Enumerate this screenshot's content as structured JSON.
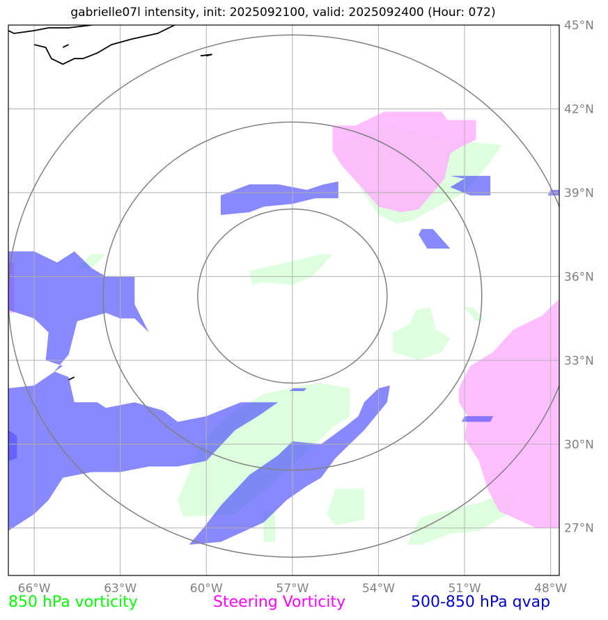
{
  "title": "gabrielle07l intensity, init: 2025092100, valid: 2025092400 (Hour: 072)",
  "map": {
    "lon_range": [
      -66.9,
      -47.7
    ],
    "lat_range": [
      25.3,
      45.0
    ],
    "storm_center": {
      "lon": -57.0,
      "lat": 35.3
    },
    "range_rings_deg": [
      3.3,
      6.6,
      9.9
    ],
    "lon_ticks": [
      {
        "lon": -66,
        "label": "66°W"
      },
      {
        "lon": -63,
        "label": "63°W"
      },
      {
        "lon": -60,
        "label": "60°W"
      },
      {
        "lon": -57,
        "label": "57°W"
      },
      {
        "lon": -54,
        "label": "54°W"
      },
      {
        "lon": -51,
        "label": "51°W"
      },
      {
        "lon": -48,
        "label": "48°W"
      }
    ],
    "lat_ticks": [
      {
        "lat": 45,
        "label": "45°N"
      },
      {
        "lat": 42,
        "label": "42°N"
      },
      {
        "lat": 39,
        "label": "39°N"
      },
      {
        "lat": 36,
        "label": "36°N"
      },
      {
        "lat": 33,
        "label": "33°N"
      },
      {
        "lat": 30,
        "label": "30°N"
      },
      {
        "lat": 27,
        "label": "27°N"
      }
    ],
    "grid": true
  },
  "layers": [
    {
      "key": "vort850",
      "label": "850 hPa vorticity",
      "color": "#00ff00",
      "fill": "#ccffcc",
      "opacity": 0.65,
      "polygons": [
        [
          [
            -55.4,
            40.9
          ],
          [
            -53.6,
            41.4
          ],
          [
            -51.5,
            40.9
          ],
          [
            -49.7,
            40.7
          ],
          [
            -50.1,
            40.1
          ],
          [
            -51.0,
            39.0
          ],
          [
            -52.3,
            38.3
          ],
          [
            -52.8,
            38.0
          ],
          [
            -53.4,
            37.9
          ],
          [
            -54.0,
            38.2
          ],
          [
            -54.6,
            39.1
          ],
          [
            -55.1,
            40.1
          ],
          [
            -55.4,
            40.5
          ]
        ],
        [
          [
            -58.5,
            36.2
          ],
          [
            -57.2,
            36.5
          ],
          [
            -56.0,
            36.8
          ],
          [
            -55.6,
            36.8
          ],
          [
            -56.3,
            36.0
          ],
          [
            -57.0,
            35.7
          ],
          [
            -58.0,
            35.8
          ],
          [
            -58.4,
            35.7
          ]
        ],
        [
          [
            -64.0,
            36.8
          ],
          [
            -63.5,
            36.8
          ],
          [
            -64.0,
            36.3
          ],
          [
            -64.5,
            36.3
          ]
        ],
        [
          [
            -52.7,
            34.8
          ],
          [
            -52.2,
            34.9
          ],
          [
            -52.0,
            34.1
          ],
          [
            -51.5,
            33.8
          ],
          [
            -51.8,
            33.3
          ],
          [
            -52.6,
            33.0
          ],
          [
            -53.5,
            33.3
          ],
          [
            -53.5,
            34.0
          ],
          [
            -52.9,
            34.3
          ]
        ],
        [
          [
            -51.0,
            34.9
          ],
          [
            -50.7,
            34.9
          ],
          [
            -50.3,
            34.4
          ],
          [
            -50.6,
            34.4
          ]
        ],
        [
          [
            -58.0,
            31.8
          ],
          [
            -56.1,
            32.2
          ],
          [
            -55.0,
            32.0
          ],
          [
            -55.0,
            31.0
          ],
          [
            -55.6,
            30.6
          ],
          [
            -56.5,
            29.7
          ],
          [
            -58.0,
            28.3
          ],
          [
            -59.0,
            27.5
          ],
          [
            -60.8,
            27.4
          ],
          [
            -61.0,
            28.0
          ],
          [
            -60.6,
            29.0
          ],
          [
            -60.2,
            30.0
          ],
          [
            -59.5,
            30.8
          ],
          [
            -59.0,
            31.2
          ]
        ],
        [
          [
            -58.0,
            27.6
          ],
          [
            -57.6,
            27.6
          ],
          [
            -57.6,
            26.5
          ],
          [
            -58.0,
            26.5
          ]
        ],
        [
          [
            -55.5,
            28.4
          ],
          [
            -54.5,
            28.4
          ],
          [
            -54.5,
            27.3
          ],
          [
            -55.5,
            27.1
          ],
          [
            -55.8,
            27.5
          ]
        ],
        [
          [
            -52.5,
            27.4
          ],
          [
            -50.5,
            27.9
          ],
          [
            -49.0,
            28.5
          ],
          [
            -49.5,
            27.5
          ],
          [
            -50.5,
            26.9
          ],
          [
            -51.5,
            26.8
          ],
          [
            -52.5,
            26.4
          ],
          [
            -53.0,
            26.4
          ],
          [
            -52.8,
            26.9
          ]
        ]
      ]
    },
    {
      "key": "steer",
      "label": "Steering Vorticity",
      "color": "#ff00ff",
      "fill": "#ffb3ff",
      "opacity": 0.85,
      "polygons": [
        [
          [
            -55.6,
            41.4
          ],
          [
            -54.8,
            41.4
          ],
          [
            -53.8,
            41.9
          ],
          [
            -51.8,
            41.9
          ],
          [
            -51.6,
            41.6
          ],
          [
            -50.6,
            41.6
          ],
          [
            -50.6,
            40.9
          ],
          [
            -51.2,
            40.6
          ],
          [
            -51.5,
            40.4
          ],
          [
            -51.7,
            39.5
          ],
          [
            -52.6,
            38.4
          ],
          [
            -53.2,
            38.3
          ],
          [
            -54.0,
            38.5
          ],
          [
            -54.6,
            39.2
          ],
          [
            -55.3,
            40.0
          ],
          [
            -55.6,
            40.5
          ]
        ],
        [
          [
            -47.7,
            35.2
          ],
          [
            -48.3,
            34.6
          ],
          [
            -49.3,
            34.1
          ],
          [
            -50.0,
            33.3
          ],
          [
            -50.8,
            32.8
          ],
          [
            -51.2,
            32.0
          ],
          [
            -51.2,
            31.5
          ],
          [
            -50.9,
            31.0
          ],
          [
            -51.0,
            30.2
          ],
          [
            -50.5,
            29.4
          ],
          [
            -50.2,
            28.4
          ],
          [
            -49.8,
            27.6
          ],
          [
            -48.5,
            27.0
          ],
          [
            -47.7,
            27.0
          ]
        ],
        [
          [
            -66.9,
            36.5
          ],
          [
            -66.7,
            36.5
          ],
          [
            -66.7,
            34.7
          ],
          [
            -66.9,
            34.7
          ]
        ]
      ]
    },
    {
      "key": "qvap",
      "label": "500-850 hPa qvap",
      "color": "#0000cc",
      "fill": "#5555ff",
      "opacity": 0.7,
      "polygons": [
        [
          [
            -59.5,
            38.9
          ],
          [
            -58.5,
            39.3
          ],
          [
            -57.5,
            39.3
          ],
          [
            -56.5,
            39.1
          ],
          [
            -55.9,
            39.3
          ],
          [
            -55.4,
            39.4
          ],
          [
            -55.4,
            38.8
          ],
          [
            -56.2,
            38.8
          ],
          [
            -57.0,
            38.6
          ],
          [
            -58.0,
            38.5
          ],
          [
            -58.5,
            38.3
          ],
          [
            -59.5,
            38.2
          ]
        ],
        [
          [
            -51.5,
            39.6
          ],
          [
            -50.1,
            39.6
          ],
          [
            -50.1,
            38.9
          ],
          [
            -50.8,
            38.9
          ],
          [
            -51.5,
            39.2
          ],
          [
            -51.0,
            39.5
          ]
        ],
        [
          [
            -52.5,
            37.7
          ],
          [
            -52.1,
            37.7
          ],
          [
            -51.5,
            37.0
          ],
          [
            -52.3,
            37.0
          ],
          [
            -52.6,
            37.5
          ]
        ],
        [
          [
            -66.9,
            36.9
          ],
          [
            -66.0,
            36.9
          ],
          [
            -65.2,
            36.5
          ],
          [
            -64.6,
            36.9
          ],
          [
            -64.0,
            36.3
          ],
          [
            -63.5,
            36.0
          ],
          [
            -62.5,
            36.0
          ],
          [
            -62.5,
            35.0
          ],
          [
            -62.0,
            34.0
          ],
          [
            -62.5,
            34.5
          ],
          [
            -63.0,
            34.5
          ],
          [
            -63.5,
            34.7
          ],
          [
            -64.5,
            34.4
          ],
          [
            -64.8,
            33.2
          ],
          [
            -65.3,
            32.6
          ],
          [
            -64.8,
            32.4
          ],
          [
            -64.6,
            31.5
          ],
          [
            -63.8,
            31.5
          ],
          [
            -63.5,
            31.3
          ],
          [
            -62.5,
            31.5
          ],
          [
            -61.5,
            31.2
          ],
          [
            -61.0,
            30.8
          ],
          [
            -60.0,
            31.0
          ],
          [
            -58.8,
            31.5
          ],
          [
            -57.5,
            31.5
          ],
          [
            -58.2,
            31.0
          ],
          [
            -59.0,
            30.5
          ],
          [
            -60.0,
            29.4
          ],
          [
            -61.0,
            29.2
          ],
          [
            -62.0,
            29.2
          ],
          [
            -63.0,
            29.0
          ],
          [
            -64.0,
            29.0
          ],
          [
            -65.0,
            28.8
          ],
          [
            -65.5,
            28.0
          ],
          [
            -66.0,
            27.5
          ],
          [
            -66.9,
            26.9
          ],
          [
            -66.9,
            32.0
          ],
          [
            -66.0,
            32.1
          ],
          [
            -65.0,
            32.8
          ],
          [
            -65.6,
            33.0
          ],
          [
            -65.5,
            34.0
          ],
          [
            -66.0,
            34.5
          ],
          [
            -66.9,
            34.8
          ]
        ],
        [
          [
            -54.0,
            32.0
          ],
          [
            -53.6,
            32.1
          ],
          [
            -53.7,
            31.5
          ],
          [
            -54.5,
            30.5
          ],
          [
            -55.5,
            29.5
          ],
          [
            -56.0,
            28.8
          ],
          [
            -56.5,
            28.5
          ],
          [
            -57.2,
            28.0
          ],
          [
            -58.0,
            27.2
          ],
          [
            -59.5,
            26.5
          ],
          [
            -60.6,
            26.4
          ],
          [
            -60.1,
            27.0
          ],
          [
            -59.5,
            27.8
          ],
          [
            -58.5,
            28.9
          ],
          [
            -57.5,
            29.6
          ],
          [
            -57.0,
            30.1
          ],
          [
            -56.0,
            30.0
          ],
          [
            -55.2,
            30.6
          ],
          [
            -54.7,
            31.0
          ],
          [
            -54.5,
            31.5
          ]
        ],
        [
          [
            -51.0,
            31.0
          ],
          [
            -50.0,
            31.0
          ],
          [
            -50.1,
            30.8
          ],
          [
            -51.1,
            30.8
          ]
        ],
        [
          [
            -57.0,
            32.0
          ],
          [
            -56.5,
            32.0
          ],
          [
            -56.6,
            31.9
          ],
          [
            -57.1,
            31.9
          ]
        ],
        [
          [
            -48.0,
            39.1
          ],
          [
            -47.7,
            39.1
          ],
          [
            -47.7,
            38.9
          ],
          [
            -48.1,
            38.9
          ]
        ],
        [
          [
            -66.9,
            30.5
          ],
          [
            -66.6,
            30.3
          ],
          [
            -66.6,
            29.5
          ],
          [
            -66.9,
            29.4
          ]
        ]
      ]
    }
  ],
  "coastline": [
    [
      [
        -66.9,
        44.8
      ],
      [
        -66.7,
        44.7
      ],
      [
        -66.0,
        44.8
      ],
      [
        -65.5,
        44.9
      ],
      [
        -64.8,
        44.9
      ],
      [
        -64.0,
        45.0
      ]
    ],
    [
      [
        -66.0,
        44.3
      ],
      [
        -65.6,
        44.2
      ],
      [
        -65.4,
        43.8
      ],
      [
        -65.0,
        43.6
      ],
      [
        -64.6,
        43.8
      ],
      [
        -64.3,
        43.8
      ],
      [
        -63.8,
        44.0
      ],
      [
        -63.3,
        44.3
      ],
      [
        -62.6,
        44.5
      ],
      [
        -61.7,
        44.7
      ],
      [
        -61.1,
        45.0
      ]
    ],
    [
      [
        -65.0,
        44.2
      ],
      [
        -64.8,
        44.3
      ]
    ],
    [
      [
        -60.2,
        43.9
      ],
      [
        -59.8,
        43.95
      ],
      [
        -60.0,
        43.9
      ]
    ],
    [
      [
        -64.8,
        32.3
      ],
      [
        -64.6,
        32.4
      ]
    ]
  ],
  "legend": [
    {
      "label": "850 hPa vorticity",
      "color": "#00ff00"
    },
    {
      "label": "Steering Vorticity",
      "color": "#ff00ff"
    },
    {
      "label": "500-850 hPa qvap",
      "color": "#0000cc"
    }
  ]
}
